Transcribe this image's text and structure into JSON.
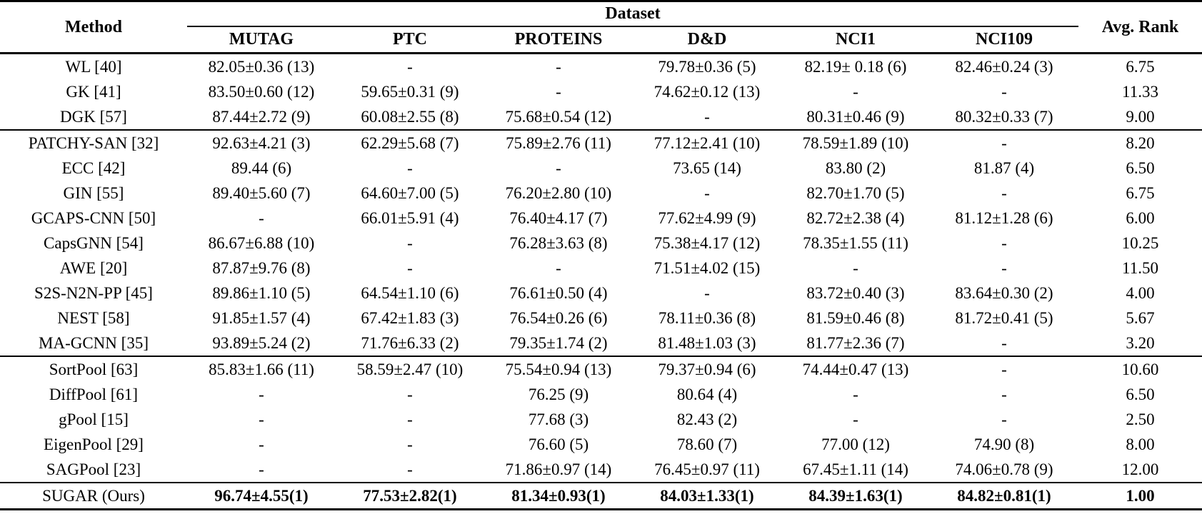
{
  "colors": {
    "background": "#ffffff",
    "text": "#000000",
    "rule": "#000000"
  },
  "table": {
    "header": {
      "method": "Method",
      "dataset_group": "Dataset",
      "datasets": [
        "MUTAG",
        "PTC",
        "PROTEINS",
        "D&D",
        "NCI1",
        "NCI109"
      ],
      "avg_rank": "Avg. Rank"
    },
    "rows": [
      {
        "method": "WL [40]",
        "values": [
          "82.05±0.36 (13)",
          "-",
          "-",
          "79.78±0.36 (5)",
          "82.19± 0.18 (6)",
          "82.46±0.24 (3)",
          "6.75"
        ],
        "bold": false,
        "separator_after": false
      },
      {
        "method": "GK [41]",
        "values": [
          "83.50±0.60 (12)",
          "59.65±0.31 (9)",
          "-",
          "74.62±0.12 (13)",
          "-",
          "-",
          "11.33"
        ],
        "bold": false,
        "separator_after": false
      },
      {
        "method": "DGK [57]",
        "values": [
          "87.44±2.72 (9)",
          "60.08±2.55 (8)",
          "75.68±0.54 (12)",
          "-",
          "80.31±0.46 (9)",
          "80.32±0.33 (7)",
          "9.00"
        ],
        "bold": false,
        "separator_after": true
      },
      {
        "method": "PATCHY-SAN [32]",
        "values": [
          "92.63±4.21 (3)",
          "62.29±5.68 (7)",
          "75.89±2.76 (11)",
          "77.12±2.41 (10)",
          "78.59±1.89 (10)",
          "-",
          "8.20"
        ],
        "bold": false,
        "separator_after": false
      },
      {
        "method": "ECC [42]",
        "values": [
          "89.44 (6)",
          "-",
          "-",
          "73.65 (14)",
          "83.80 (2)",
          "81.87 (4)",
          "6.50"
        ],
        "bold": false,
        "separator_after": false
      },
      {
        "method": "GIN [55]",
        "values": [
          "89.40±5.60 (7)",
          "64.60±7.00 (5)",
          "76.20±2.80 (10)",
          "-",
          "82.70±1.70 (5)",
          "-",
          "6.75"
        ],
        "bold": false,
        "separator_after": false
      },
      {
        "method": "GCAPS-CNN [50]",
        "values": [
          "-",
          "66.01±5.91 (4)",
          "76.40±4.17 (7)",
          "77.62±4.99 (9)",
          "82.72±2.38 (4)",
          "81.12±1.28 (6)",
          "6.00"
        ],
        "bold": false,
        "separator_after": false
      },
      {
        "method": "CapsGNN [54]",
        "values": [
          "86.67±6.88 (10)",
          "-",
          "76.28±3.63 (8)",
          "75.38±4.17 (12)",
          "78.35±1.55 (11)",
          "-",
          "10.25"
        ],
        "bold": false,
        "separator_after": false
      },
      {
        "method": "AWE [20]",
        "values": [
          "87.87±9.76 (8)",
          "-",
          "-",
          "71.51±4.02 (15)",
          "-",
          "-",
          "11.50"
        ],
        "bold": false,
        "separator_after": false
      },
      {
        "method": "S2S-N2N-PP [45]",
        "values": [
          "89.86±1.10 (5)",
          "64.54±1.10 (6)",
          "76.61±0.50 (4)",
          "-",
          "83.72±0.40 (3)",
          "83.64±0.30 (2)",
          "4.00"
        ],
        "bold": false,
        "separator_after": false
      },
      {
        "method": "NEST [58]",
        "values": [
          "91.85±1.57 (4)",
          "67.42±1.83 (3)",
          "76.54±0.26 (6)",
          "78.11±0.36 (8)",
          "81.59±0.46 (8)",
          "81.72±0.41 (5)",
          "5.67"
        ],
        "bold": false,
        "separator_after": false
      },
      {
        "method": "MA-GCNN [35]",
        "values": [
          "93.89±5.24 (2)",
          "71.76±6.33 (2)",
          "79.35±1.74 (2)",
          "81.48±1.03 (3)",
          "81.77±2.36 (7)",
          "-",
          "3.20"
        ],
        "bold": false,
        "separator_after": true
      },
      {
        "method": "SortPool [63]",
        "values": [
          "85.83±1.66 (11)",
          "58.59±2.47 (10)",
          "75.54±0.94 (13)",
          "79.37±0.94 (6)",
          "74.44±0.47 (13)",
          "-",
          "10.60"
        ],
        "bold": false,
        "separator_after": false
      },
      {
        "method": "DiffPool [61]",
        "values": [
          "-",
          "-",
          "76.25 (9)",
          "80.64 (4)",
          "-",
          "-",
          "6.50"
        ],
        "bold": false,
        "separator_after": false
      },
      {
        "method": "gPool [15]",
        "values": [
          "-",
          "-",
          "77.68 (3)",
          "82.43 (2)",
          "-",
          "-",
          "2.50"
        ],
        "bold": false,
        "separator_after": false
      },
      {
        "method": "EigenPool [29]",
        "values": [
          "-",
          "-",
          "76.60 (5)",
          "78.60 (7)",
          "77.00 (12)",
          "74.90 (8)",
          "8.00"
        ],
        "bold": false,
        "separator_after": false
      },
      {
        "method": "SAGPool [23]",
        "values": [
          "-",
          "-",
          "71.86±0.97 (14)",
          "76.45±0.97 (11)",
          "67.45±1.11 (14)",
          "74.06±0.78 (9)",
          "12.00"
        ],
        "bold": false,
        "separator_after": true
      },
      {
        "method": "SUGAR (Ours)",
        "values": [
          "96.74±4.55(1)",
          "77.53±2.82(1)",
          "81.34±0.93(1)",
          "84.03±1.33(1)",
          "84.39±1.63(1)",
          "84.82±0.81(1)",
          "1.00"
        ],
        "bold": true,
        "separator_after": false
      }
    ]
  }
}
